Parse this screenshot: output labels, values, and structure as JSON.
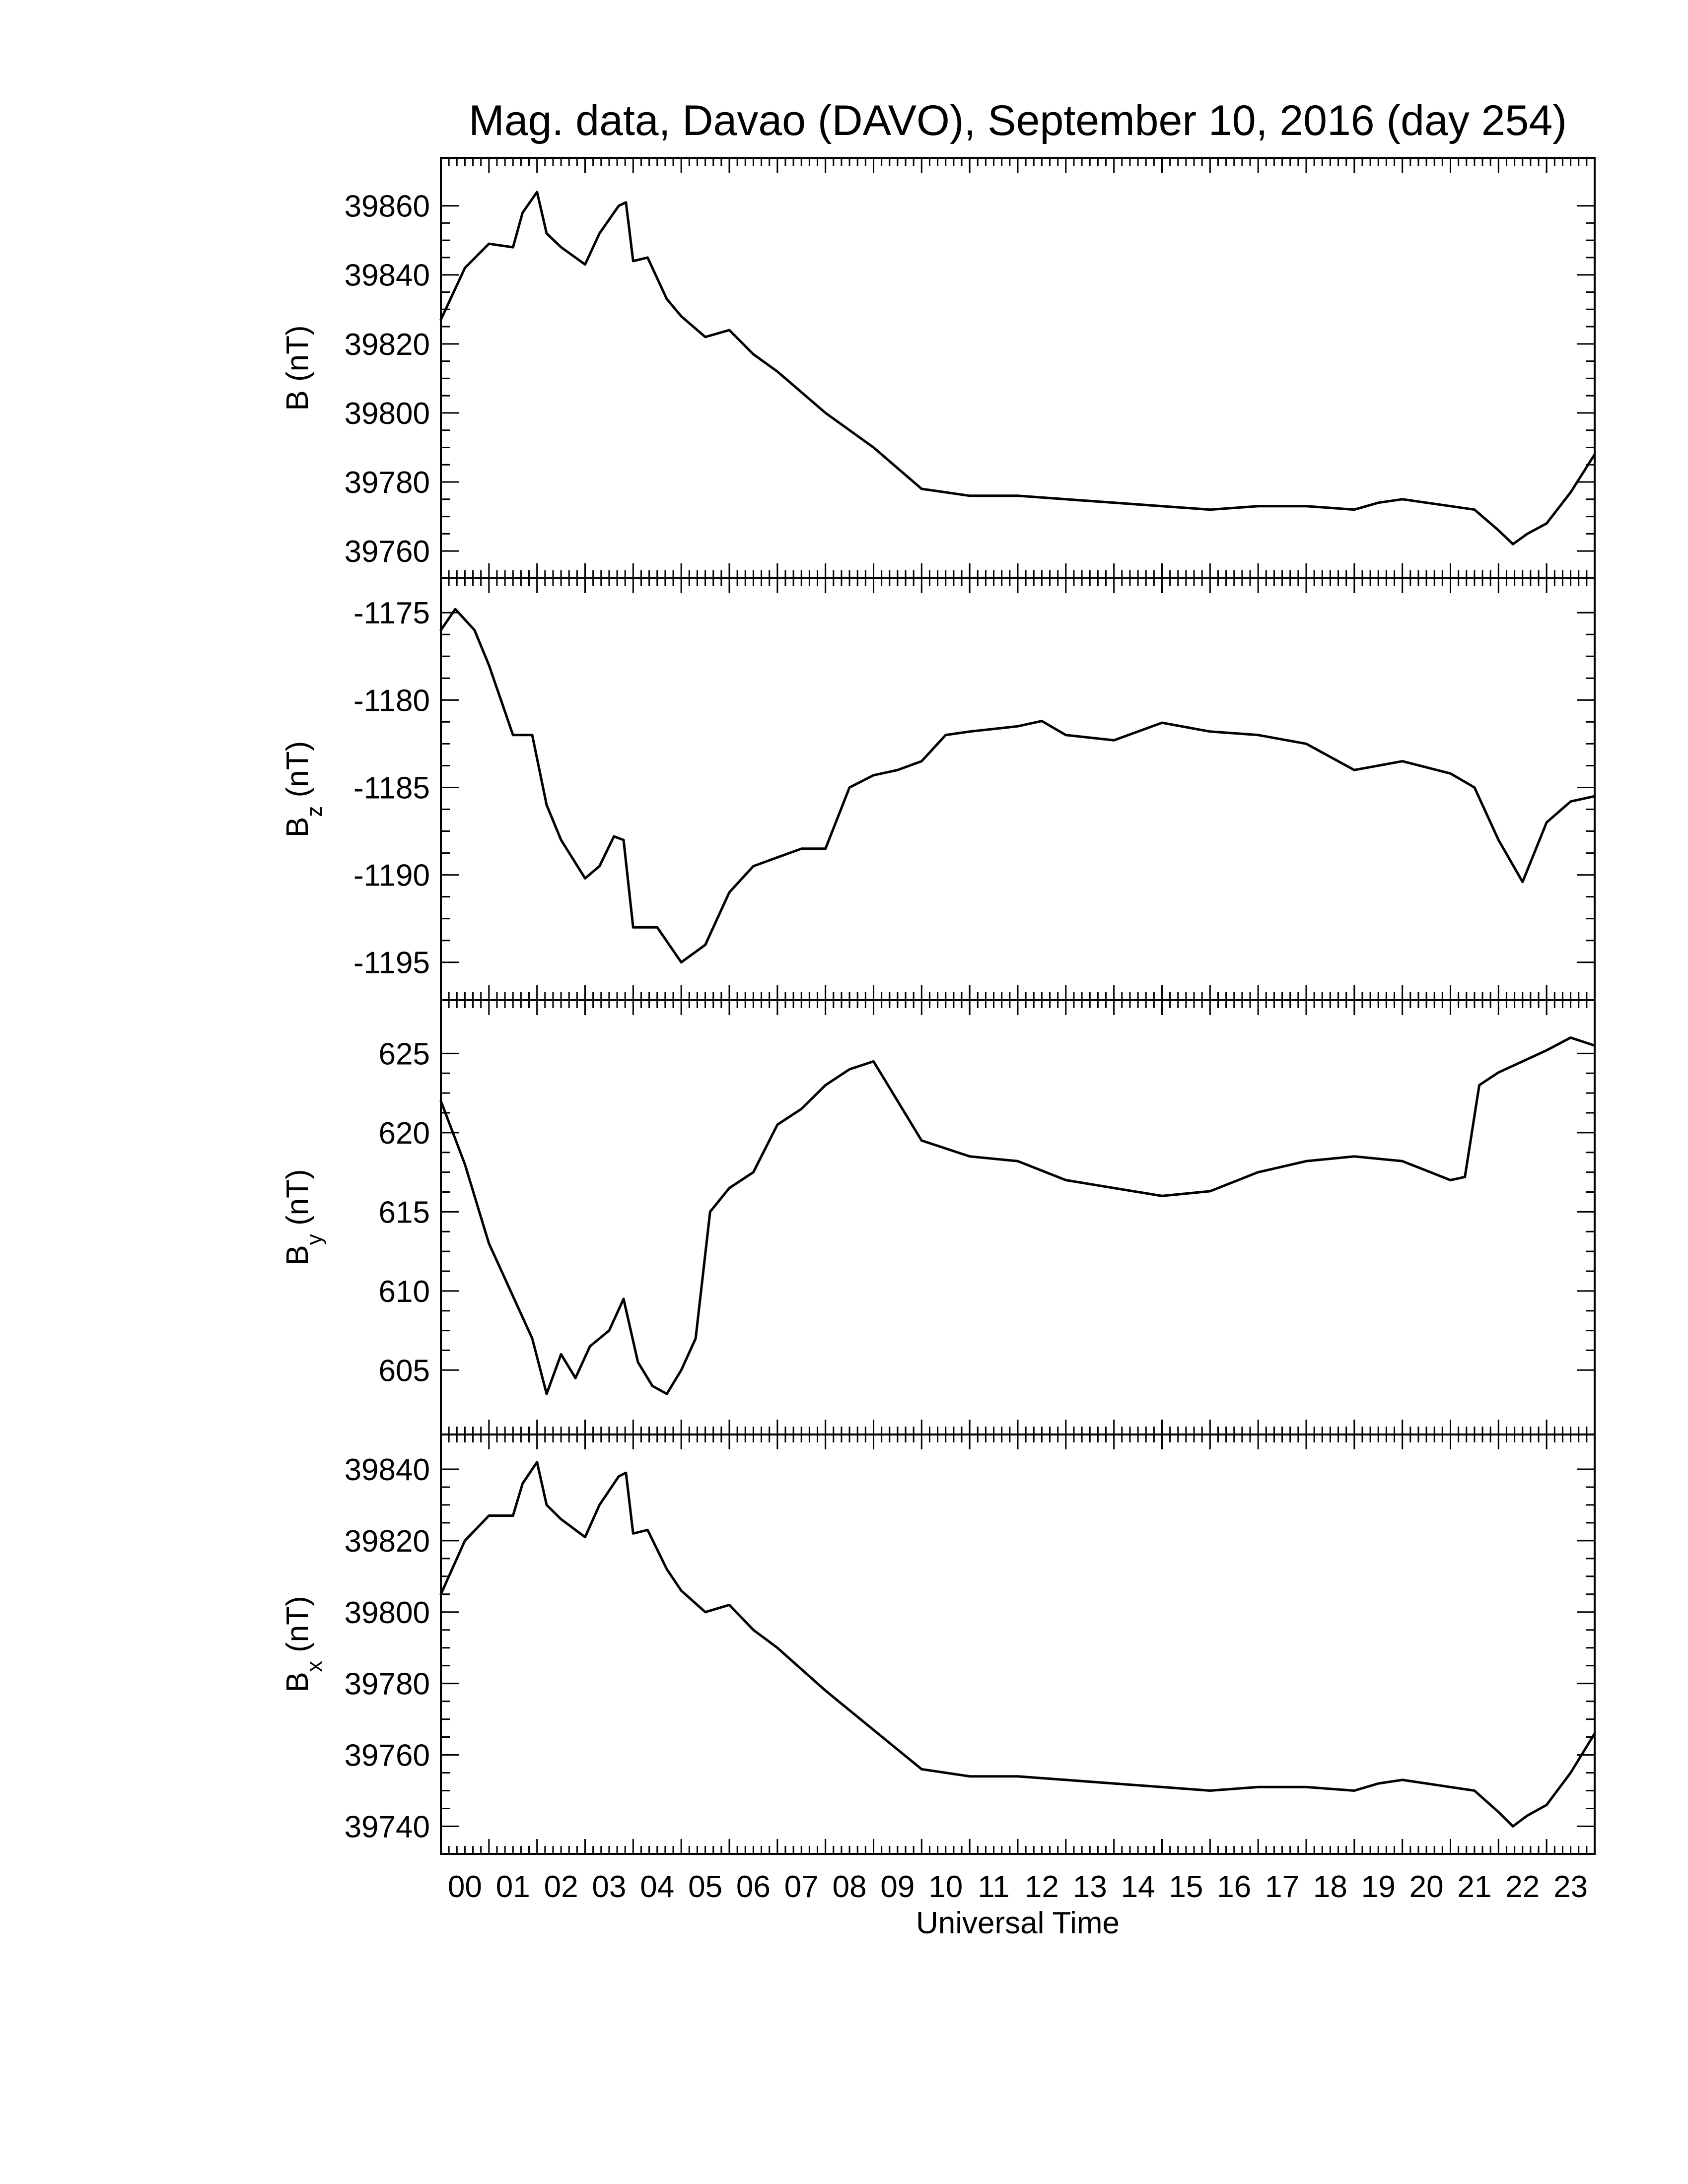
{
  "chart_data": {
    "type": "line",
    "title": "Mag. data, Davao (DAVO), September 10, 2016 (day 254)",
    "xlabel": "Universal Time",
    "xlim": [
      0,
      24
    ],
    "x_tick_labels": [
      "00",
      "01",
      "02",
      "03",
      "04",
      "05",
      "06",
      "07",
      "08",
      "09",
      "10",
      "11",
      "12",
      "13",
      "14",
      "15",
      "16",
      "17",
      "18",
      "19",
      "20",
      "21",
      "22",
      "23"
    ],
    "panels": [
      {
        "name": "B",
        "ylabel": {
          "main": "B",
          "sub": "",
          "unit": " (nT)"
        },
        "ylim": [
          39757,
          39869
        ],
        "yticks": [
          "39760",
          "39780",
          "39800",
          "39820",
          "39840",
          "39860"
        ],
        "x": [
          0,
          0.5,
          1,
          1.5,
          1.7,
          2,
          2.2,
          2.5,
          3,
          3.3,
          3.7,
          3.85,
          4,
          4.3,
          4.7,
          5,
          5.5,
          6,
          6.5,
          7,
          8,
          9,
          10,
          11,
          12,
          13,
          14,
          15,
          16,
          17,
          18,
          19,
          19.5,
          20,
          21,
          21.5,
          22,
          22.3,
          22.6,
          23,
          23.5,
          24
        ],
        "y": [
          39827,
          39842,
          39849,
          39848,
          39858,
          39864,
          39852,
          39848,
          39843,
          39852,
          39860,
          39861,
          39844,
          39845,
          39833,
          39828,
          39822,
          39824,
          39817,
          39812,
          39800,
          39790,
          39778,
          39776,
          39776,
          39775,
          39774,
          39773,
          39772,
          39773,
          39773,
          39772,
          39774,
          39775,
          39773,
          39772,
          39766,
          39762,
          39765,
          39768,
          39777,
          39788
        ]
      },
      {
        "name": "Bz",
        "ylabel": {
          "main": "B",
          "sub": "z",
          "unit": " (nT)"
        },
        "ylim": [
          -1196.2,
          -1174
        ],
        "yticks": [
          "-1175",
          "-1180",
          "-1185",
          "-1190",
          "-1195"
        ],
        "x": [
          0,
          0.3,
          0.7,
          1,
          1.5,
          1.9,
          2.2,
          2.5,
          3,
          3.3,
          3.6,
          3.8,
          4,
          4.5,
          5,
          5.5,
          6,
          6.5,
          7,
          7.5,
          8,
          8.5,
          9,
          9.5,
          10,
          10.5,
          11,
          12,
          12.5,
          13,
          14,
          15,
          16,
          17,
          18,
          19,
          20,
          21,
          21.5,
          22,
          22.5,
          23,
          23.5,
          24
        ],
        "y": [
          -1176,
          -1174.8,
          -1176,
          -1178,
          -1182,
          -1182,
          -1186,
          -1188,
          -1190.2,
          -1189.5,
          -1187.8,
          -1188,
          -1193,
          -1193,
          -1195,
          -1194,
          -1191,
          -1189.5,
          -1189,
          -1188.5,
          -1188.5,
          -1185,
          -1184.3,
          -1184,
          -1183.5,
          -1182,
          -1181.8,
          -1181.5,
          -1181.2,
          -1182,
          -1182.3,
          -1181.3,
          -1181.8,
          -1182,
          -1182.5,
          -1184,
          -1183.5,
          -1184.2,
          -1185,
          -1188,
          -1190.4,
          -1187,
          -1185.8,
          -1185.5
        ]
      },
      {
        "name": "By",
        "ylabel": {
          "main": "B",
          "sub": "y",
          "unit": " (nT)"
        },
        "ylim": [
          602,
          627.3
        ],
        "yticks": [
          "605",
          "610",
          "615",
          "620",
          "625"
        ],
        "x": [
          0,
          0.5,
          1,
          1.3,
          1.6,
          1.9,
          2.2,
          2.5,
          2.8,
          3.1,
          3.5,
          3.8,
          4.1,
          4.4,
          4.7,
          5,
          5.3,
          5.6,
          6,
          6.5,
          7,
          7.5,
          8,
          8.5,
          9,
          9.5,
          10,
          11,
          12,
          13,
          14,
          15,
          16,
          17,
          18,
          19,
          20,
          21,
          21.3,
          21.6,
          22,
          22.5,
          23,
          23.5,
          24
        ],
        "y": [
          622,
          618,
          613,
          611,
          609,
          607,
          603.5,
          606,
          604.5,
          606.5,
          607.5,
          609.5,
          605.5,
          604,
          603.5,
          605,
          607,
          615,
          616.5,
          617.5,
          620.5,
          621.5,
          623,
          624,
          624.5,
          622,
          619.5,
          618.5,
          618.2,
          617,
          616.5,
          616,
          616.3,
          617.5,
          618.2,
          618.5,
          618.2,
          617,
          617.2,
          623,
          623.8,
          624.5,
          625.2,
          626,
          625.5
        ]
      },
      {
        "name": "Bx",
        "ylabel": {
          "main": "B",
          "sub": "x",
          "unit": " (nT)"
        },
        "ylim": [
          39737,
          39845
        ],
        "yticks": [
          "39740",
          "39760",
          "39780",
          "39800",
          "39820",
          "39840"
        ],
        "x": [
          0,
          0.5,
          1,
          1.5,
          1.7,
          2,
          2.2,
          2.5,
          3,
          3.3,
          3.7,
          3.85,
          4,
          4.3,
          4.7,
          5,
          5.5,
          6,
          6.5,
          7,
          8,
          9,
          10,
          11,
          12,
          13,
          14,
          15,
          16,
          17,
          18,
          19,
          19.5,
          20,
          21,
          21.5,
          22,
          22.3,
          22.6,
          23,
          23.5,
          24
        ],
        "y": [
          39805,
          39820,
          39827,
          39827,
          39836,
          39842,
          39830,
          39826,
          39821,
          39830,
          39838,
          39839,
          39822,
          39823,
          39812,
          39806,
          39800,
          39802,
          39795,
          39790,
          39778,
          39767,
          39756,
          39754,
          39754,
          39753,
          39752,
          39751,
          39750,
          39751,
          39751,
          39750,
          39752,
          39753,
          39751,
          39750,
          39744,
          39740,
          39743,
          39746,
          39755,
          39766
        ]
      }
    ]
  }
}
